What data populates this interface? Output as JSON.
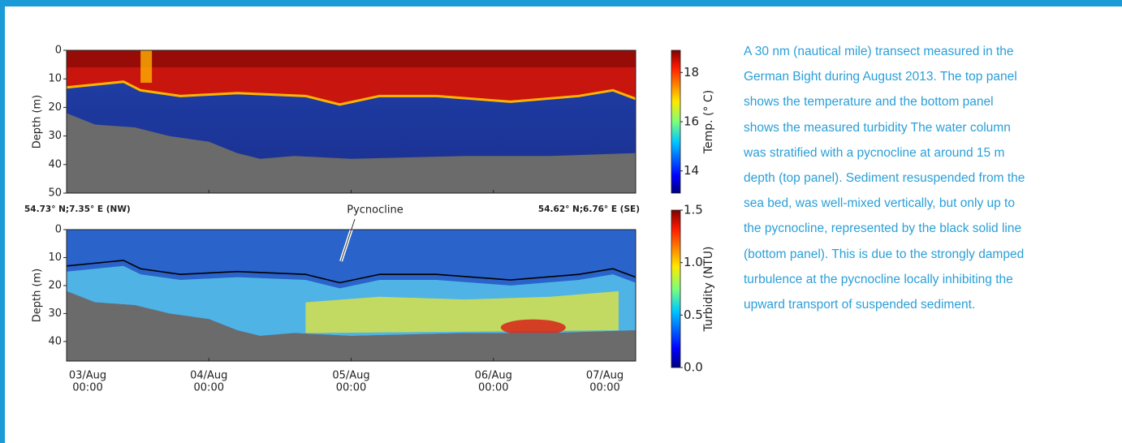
{
  "figure": {
    "top_panel": {
      "ylabel": "Depth (m)",
      "ylim": [
        0,
        50
      ],
      "yticks": [
        0,
        10,
        20,
        30,
        40,
        50
      ],
      "colorbar": {
        "label": "Temp. (° C)",
        "lim": [
          13.1,
          18.9
        ],
        "ticks": [
          14,
          16,
          18
        ]
      }
    },
    "location_left": "54.73° N;7.35° E (NW)",
    "location_right": "54.62° N;6.76° E (SE)",
    "bottom_panel": {
      "ylabel": "Depth (m)",
      "ylim": [
        0,
        47
      ],
      "yticks": [
        0,
        10,
        20,
        30,
        40
      ],
      "annotation": "Pycnocline",
      "colorbar": {
        "label": "Turbidity (NTU)",
        "lim": [
          0,
          1.5
        ],
        "ticks": [
          {
            "value": 0,
            "label": "0.0"
          },
          {
            "value": 0.5,
            "label": "0.5"
          },
          {
            "value": 1,
            "label": "1.0"
          },
          {
            "value": 1.5,
            "label": "1.5"
          }
        ]
      }
    },
    "xticks": [
      {
        "date": "03/Aug",
        "time": "00:00"
      },
      {
        "date": "04/Aug",
        "time": "00:00"
      },
      {
        "date": "05/Aug",
        "time": "00:00"
      },
      {
        "date": "06/Aug",
        "time": "00:00"
      },
      {
        "date": "07/Aug",
        "time": "00:00"
      }
    ]
  },
  "caption": [
    "A 30 nm (nautical mile) transect measured in the",
    "German Bight during August 2013. The top panel",
    "shows the temperature and the bottom panel",
    "shows the measured turbidity The water column",
    "was stratified with a pycnocline at around 15 m",
    "depth (top panel). Sediment resuspended from the",
    "sea bed, was well-mixed vertically, but only up to",
    "the pycnocline, represented by the black solid line",
    "(bottom panel). This is due to the strongly damped",
    "turbulence at the pycnocline locally inhibiting the",
    "upward transport of suspended sediment."
  ]
}
